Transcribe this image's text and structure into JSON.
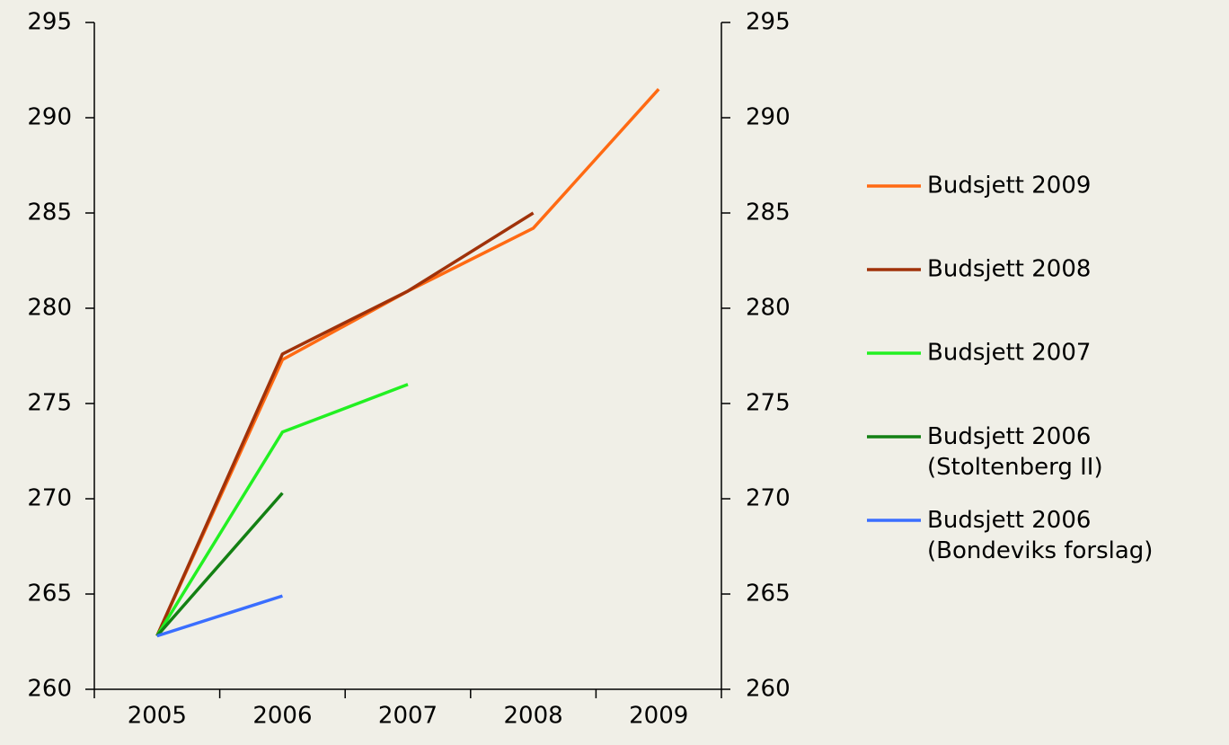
{
  "chart_data": {
    "type": "line",
    "categories": [
      "2005",
      "2006",
      "2007",
      "2008",
      "2009"
    ],
    "series": [
      {
        "name": "Budsjett 2009",
        "color": "#ff6a13",
        "values": [
          262.8,
          277.3,
          280.9,
          284.2,
          291.5
        ]
      },
      {
        "name": "Budsjett 2008",
        "color": "#a0320a",
        "values": [
          262.8,
          277.6,
          280.9,
          285.0,
          null
        ]
      },
      {
        "name": "Budsjett 2007",
        "color": "#22f022",
        "values": [
          262.8,
          273.5,
          276.0,
          null,
          null
        ]
      },
      {
        "name": "Budsjett 2006\n(Stoltenberg II)",
        "color": "#138013",
        "values": [
          262.8,
          270.3,
          null,
          null,
          null
        ]
      },
      {
        "name": "Budsjett 2006\n(Bondeviks forslag)",
        "color": "#3a6eff",
        "values": [
          262.8,
          264.9,
          null,
          null,
          null
        ]
      }
    ],
    "ylim": [
      260,
      295
    ],
    "yticks": [
      260,
      265,
      270,
      275,
      280,
      285,
      290,
      295
    ],
    "y2lim": [
      260,
      295
    ],
    "y2ticks": [
      260,
      265,
      270,
      275,
      280,
      285,
      290,
      295
    ],
    "legend": "right",
    "grid": false
  }
}
